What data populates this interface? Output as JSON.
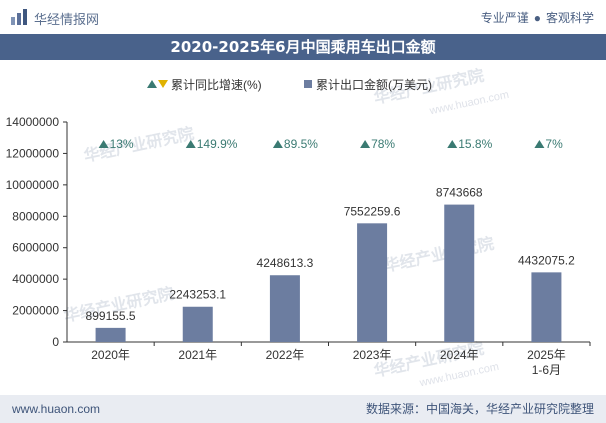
{
  "header": {
    "brand": "华经情报网",
    "links": [
      "专业严谨",
      "客观科学"
    ],
    "title": "2020-2025年6月中国乘用车出口金额"
  },
  "watermark": "华经产业研究院",
  "watermark_url": "www.huaon.com",
  "colors": {
    "bar": "#6c7da0",
    "up": "#3a7a72",
    "down": "#e0b200",
    "title_bg": "#49628b"
  },
  "chart_data": {
    "type": "bar",
    "title": "2020-2025年6月中国乘用车出口金额",
    "categories": [
      "2020年",
      "2021年",
      "2022年",
      "2023年",
      "2024年",
      "2025年\n1-6月"
    ],
    "series": [
      {
        "name": "累计出口金额(万美元)",
        "values": [
          899155.5,
          2243253.1,
          4248613.3,
          7552259.6,
          8743668,
          4432075.2
        ]
      },
      {
        "name": "累计同比增速(%)",
        "values": [
          13,
          149.9,
          89.5,
          78,
          15.8,
          7
        ],
        "labels": [
          "13%",
          "149.9%",
          "89.5%",
          "78%",
          "15.8%",
          "7%"
        ]
      }
    ],
    "value_labels": [
      "899155.5",
      "2243253.1",
      "4248613.3",
      "7552259.6",
      "8743668",
      "4432075.2"
    ],
    "legend": [
      "累计同比增速(%)",
      "累计出口金额(万美元)"
    ],
    "legend_position": "top",
    "ylim": [
      0,
      14000000
    ],
    "yticks": [
      0,
      2000000,
      4000000,
      6000000,
      8000000,
      10000000,
      12000000,
      14000000
    ],
    "grid": false
  },
  "footer": {
    "site": "www.huaon.com",
    "source": "数据来源：中国海关，华经产业研究院整理"
  }
}
